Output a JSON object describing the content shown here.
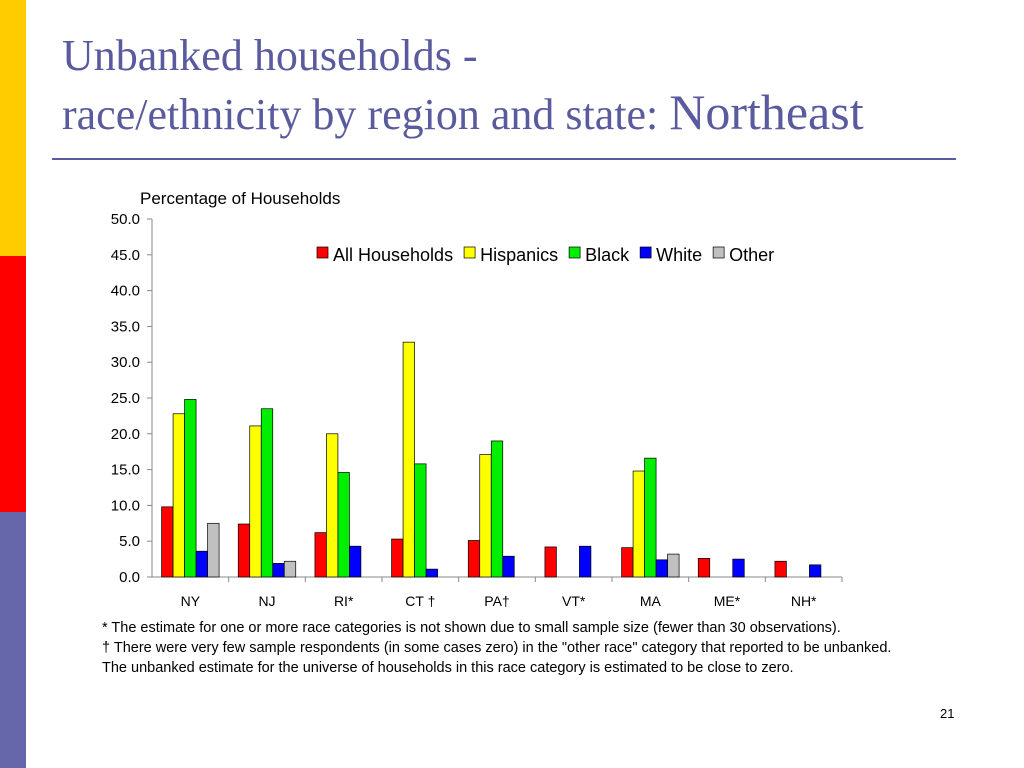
{
  "slide": {
    "title_line1": "Unbanked households -",
    "title_line2a": "race/ethnicity by region and state: ",
    "title_line2b": "Northeast",
    "page_number": "21",
    "footnote_1": "* The estimate for one or more race categories is not shown due to small sample size (fewer than 30 observations).",
    "footnote_2": "† There were very few sample respondents (in some cases zero) in the \"other race\" category that reported to be unbanked. The unbanked estimate for the universe of households in this race category is estimated to be close to zero.",
    "accent_colors": {
      "title": "#5a5a9e",
      "stripe_top": "#ffcc00",
      "stripe_middle": "#ff0000",
      "stripe_bottom": "#6666aa"
    }
  },
  "chart_data": {
    "type": "bar",
    "ylabel": "Percentage of Households",
    "categories": [
      "NY",
      "NJ",
      "RI*",
      "CT †",
      "PA†",
      "VT*",
      "MA",
      "ME*",
      "NH*"
    ],
    "ylim": [
      0,
      50
    ],
    "yticks": [
      "0.0",
      "5.0",
      "10.0",
      "15.0",
      "20.0",
      "25.0",
      "30.0",
      "35.0",
      "40.0",
      "45.0",
      "50.0"
    ],
    "grid": false,
    "legend_position": "top-right",
    "series": [
      {
        "name": "All Households",
        "color": "#ff0000",
        "values": [
          9.8,
          7.4,
          6.2,
          5.3,
          5.1,
          4.2,
          4.1,
          2.6,
          2.2
        ]
      },
      {
        "name": "Hispanics",
        "color": "#ffff00",
        "values": [
          22.8,
          21.1,
          20.0,
          32.8,
          17.1,
          null,
          14.8,
          null,
          null
        ]
      },
      {
        "name": "Black",
        "color": "#00ee00",
        "values": [
          24.8,
          23.5,
          14.6,
          15.8,
          19.0,
          null,
          16.6,
          null,
          null
        ]
      },
      {
        "name": "White",
        "color": "#0000ff",
        "values": [
          3.6,
          1.9,
          4.3,
          1.1,
          2.9,
          4.3,
          2.4,
          2.5,
          1.7
        ]
      },
      {
        "name": "Other",
        "color": "#c0c0c0",
        "values": [
          7.5,
          2.2,
          null,
          null,
          null,
          null,
          3.2,
          null,
          null
        ]
      }
    ]
  }
}
